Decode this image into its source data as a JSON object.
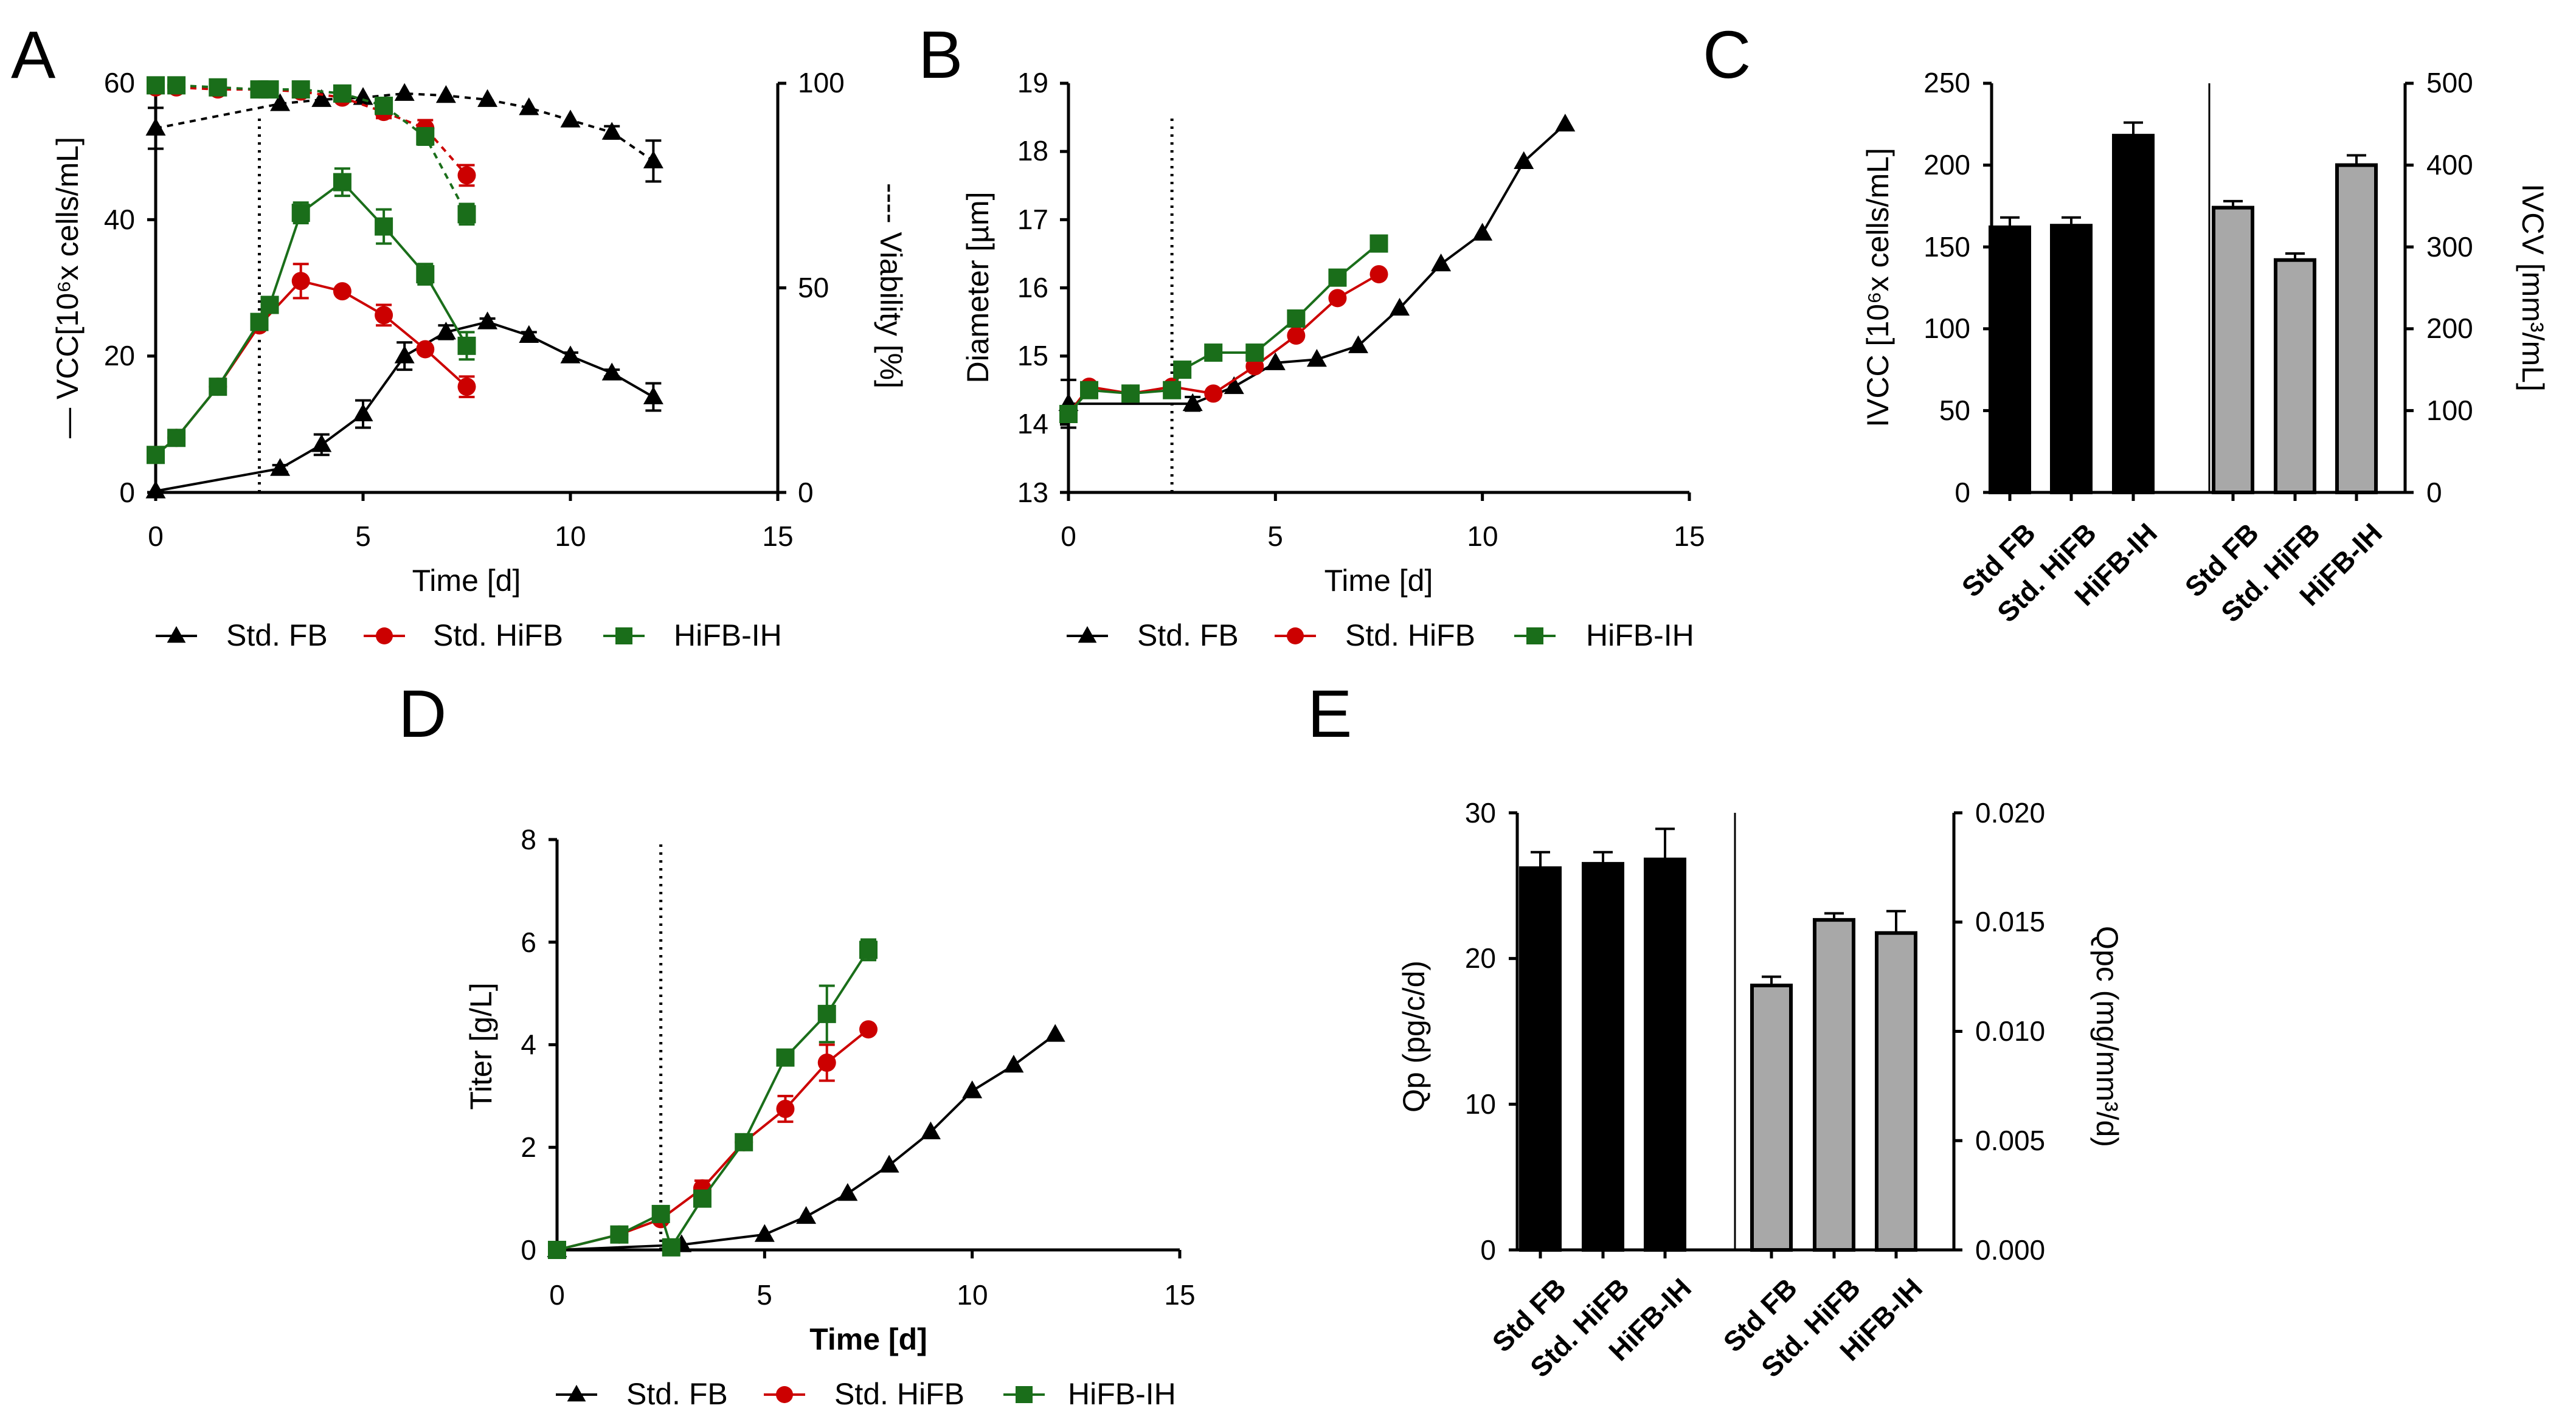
{
  "colors": {
    "std_fb": "#000000",
    "std_hifb": "#cc0000",
    "hifb_ih": "#1a6e1a",
    "bar_black": "#000000",
    "bar_gray": "#a8a8a8"
  },
  "legend": {
    "std_fb": "Std. FB",
    "std_hifb": "Std. HiFB",
    "hifb_ih": "HiFB-IH"
  },
  "chart_data": [
    {
      "panel": "A",
      "type": "line",
      "xlabel": "Time [d]",
      "ylabel": "VCC[10⁶x cells/mL]",
      "ylabel_prefix": "—",
      "y2label": "Viability [%]",
      "y2label_prefix": "----",
      "xlim": [
        0,
        15
      ],
      "ylim": [
        0,
        60
      ],
      "y2lim": [
        0,
        100
      ],
      "xticks": [
        "0",
        "5",
        "10",
        "15"
      ],
      "yticks": [
        "0",
        "20",
        "40",
        "60"
      ],
      "y2ticks": [
        "0",
        "50",
        "100"
      ],
      "vline_x": 2.5,
      "series": [
        {
          "name": "Std. FB",
          "metric": "VCC",
          "axis": "left",
          "dashed": false,
          "marker": "triangle",
          "color_key": "std_fb",
          "x": [
            0,
            3,
            4,
            5,
            6,
            7,
            8,
            9,
            10,
            11,
            12
          ],
          "y": [
            0.2,
            3.5,
            7,
            11.5,
            20,
            23.5,
            25,
            23,
            20,
            17.5,
            14
          ],
          "err": [
            0,
            0.5,
            1.5,
            2,
            2,
            1,
            0.5,
            0.5,
            0.5,
            0.5,
            2
          ]
        },
        {
          "name": "Std. HiFB",
          "metric": "VCC",
          "axis": "left",
          "dashed": false,
          "marker": "circle",
          "color_key": "std_hifb",
          "x": [
            0,
            0.5,
            1.5,
            2.5,
            3.5,
            4.5,
            5.5,
            6.5,
            7.5
          ],
          "y": [
            5.5,
            8,
            15.5,
            24.5,
            31,
            29.5,
            26,
            21,
            15.5
          ],
          "err": [
            0.5,
            0.5,
            0.5,
            0.5,
            2.5,
            0.5,
            1.5,
            0.5,
            1.5
          ]
        },
        {
          "name": "HiFB-IH",
          "metric": "VCC",
          "axis": "left",
          "dashed": false,
          "marker": "square",
          "color_key": "hifb_ih",
          "x": [
            0,
            0.5,
            1.5,
            2.5,
            2.75,
            3.5,
            4.5,
            5.5,
            6.5,
            7.5
          ],
          "y": [
            5.5,
            8,
            15.5,
            25,
            27.5,
            41,
            45.5,
            39,
            32,
            21.5
          ],
          "err": [
            0.5,
            0.5,
            0.5,
            0.5,
            0.5,
            1.5,
            2,
            2.5,
            1.5,
            2
          ]
        },
        {
          "name": "Std. FB",
          "metric": "Viability",
          "axis": "right",
          "dashed": true,
          "marker": "triangle",
          "color_key": "std_fb",
          "x": [
            0,
            3,
            4,
            5,
            6,
            7,
            8,
            9,
            10,
            11,
            12
          ],
          "y": [
            89,
            95,
            96,
            96.5,
            97.5,
            97,
            96,
            94,
            91,
            88,
            81
          ],
          "err": [
            5,
            0,
            0,
            0,
            0,
            0,
            0,
            0,
            0,
            1.5,
            5
          ]
        },
        {
          "name": "Std. HiFB",
          "metric": "Viability",
          "axis": "right",
          "dashed": true,
          "marker": "circle",
          "color_key": "std_hifb",
          "x": [
            0,
            0.5,
            1.5,
            2.5,
            3.5,
            4.5,
            5.5,
            6.5,
            7.5
          ],
          "y": [
            99,
            99,
            98.5,
            98.5,
            98,
            96.5,
            93,
            89,
            77.5
          ],
          "err": [
            0,
            0,
            0,
            0,
            0,
            0,
            1.5,
            2,
            2.5
          ]
        },
        {
          "name": "HiFB-IH",
          "metric": "Viability",
          "axis": "right",
          "dashed": true,
          "marker": "square",
          "color_key": "hifb_ih",
          "x": [
            0,
            0.5,
            1.5,
            2.5,
            2.75,
            3.5,
            4.5,
            5.5,
            6.5,
            7.5
          ],
          "y": [
            99.5,
            99.5,
            99,
            98.5,
            98.5,
            98.5,
            97.5,
            94.5,
            87,
            68
          ],
          "err": [
            0,
            0,
            0,
            0,
            0,
            0,
            0,
            1,
            2,
            2.5
          ]
        }
      ]
    },
    {
      "panel": "B",
      "type": "line",
      "xlabel": "Time [d]",
      "ylabel": "Diameter [µm]",
      "xlim": [
        0,
        15
      ],
      "ylim": [
        13,
        19
      ],
      "xticks": [
        "0",
        "5",
        "10",
        "15"
      ],
      "yticks": [
        "13",
        "14",
        "15",
        "16",
        "17",
        "18",
        "19"
      ],
      "vline_x": 2.5,
      "series": [
        {
          "name": "Std. FB",
          "marker": "triangle",
          "color_key": "std_fb",
          "x": [
            0,
            3,
            4,
            5,
            6,
            7,
            8,
            9,
            10,
            11,
            12
          ],
          "y": [
            14.3,
            14.3,
            14.55,
            14.9,
            14.95,
            15.15,
            15.7,
            16.35,
            16.8,
            17.85,
            18.4
          ],
          "err": [
            0.35,
            0.1,
            0,
            0,
            0,
            0,
            0,
            0,
            0,
            0,
            0
          ]
        },
        {
          "name": "Std. HiFB",
          "marker": "circle",
          "color_key": "std_hifb",
          "x": [
            0,
            0.5,
            1.5,
            2.5,
            3.5,
            4.5,
            5.5,
            6.5,
            7.5
          ],
          "y": [
            14.15,
            14.55,
            14.45,
            14.55,
            14.45,
            14.85,
            15.3,
            15.85,
            16.2
          ],
          "err": [
            0,
            0,
            0,
            0,
            0,
            0,
            0,
            0,
            0
          ]
        },
        {
          "name": "HiFB-IH",
          "marker": "square",
          "color_key": "hifb_ih",
          "x": [
            0,
            0.5,
            1.5,
            2.5,
            2.75,
            3.5,
            4.5,
            5.5,
            6.5,
            7.5
          ],
          "y": [
            14.15,
            14.5,
            14.45,
            14.5,
            14.8,
            15.05,
            15.05,
            15.55,
            16.15,
            16.65
          ],
          "err": [
            0,
            0,
            0,
            0,
            0,
            0,
            0,
            0,
            0,
            0
          ]
        }
      ]
    },
    {
      "panel": "C",
      "type": "bar",
      "ylabel": "IVCC [10⁶x cells/mL]",
      "y2label": "IVCV [mm³/mL]",
      "ylim": [
        0,
        250
      ],
      "y2lim": [
        0,
        500
      ],
      "yticks": [
        "0",
        "50",
        "100",
        "150",
        "200",
        "250"
      ],
      "y2ticks": [
        "0",
        "100",
        "200",
        "300",
        "400",
        "500"
      ],
      "groups": [
        {
          "metric": "IVCC",
          "axis": "left",
          "color_key": "bar_black",
          "categories": [
            "Std FB",
            "Std. HiFB",
            "HiFB-IH"
          ],
          "values": [
            162,
            163,
            218
          ],
          "err": [
            6,
            5,
            8
          ]
        },
        {
          "metric": "IVCV",
          "axis": "right",
          "color_key": "bar_gray",
          "categories": [
            "Std FB",
            "Std. HiFB",
            "HiFB-IH"
          ],
          "values": [
            348,
            284,
            400
          ],
          "err": [
            8,
            8,
            12
          ]
        }
      ]
    },
    {
      "panel": "D",
      "type": "line",
      "xlabel": "Time [d]",
      "ylabel": "Titer [g/L]",
      "xlim": [
        0,
        15
      ],
      "ylim": [
        0,
        8
      ],
      "xticks": [
        "0",
        "5",
        "10",
        "15"
      ],
      "yticks": [
        "0",
        "2",
        "4",
        "6",
        "8"
      ],
      "vline_x": 2.5,
      "series": [
        {
          "name": "Std. FB",
          "marker": "triangle",
          "color_key": "std_fb",
          "x": [
            0,
            3,
            5,
            6,
            7,
            8,
            9,
            10,
            11,
            12
          ],
          "y": [
            0,
            0.1,
            0.3,
            0.65,
            1.1,
            1.65,
            2.3,
            3.1,
            3.6,
            4.2
          ],
          "err": [
            0,
            0,
            0,
            0,
            0,
            0,
            0,
            0,
            0,
            0
          ]
        },
        {
          "name": "Std. HiFB",
          "marker": "circle",
          "color_key": "std_hifb",
          "x": [
            0,
            1.5,
            2.5,
            3.5,
            4.5,
            5.5,
            6.5,
            7.5
          ],
          "y": [
            0,
            0.3,
            0.6,
            1.2,
            2.1,
            2.75,
            3.65,
            4.3
          ],
          "err": [
            0,
            0.05,
            0.05,
            0.15,
            0.1,
            0.25,
            0.35,
            0.05
          ]
        },
        {
          "name": "HiFB-IH",
          "marker": "square",
          "color_key": "hifb_ih",
          "x": [
            0,
            1.5,
            2.5,
            2.75,
            3.5,
            4.5,
            5.5,
            6.5,
            7.5
          ],
          "y": [
            0,
            0.3,
            0.7,
            0.05,
            1.0,
            2.1,
            3.75,
            4.6,
            5.85
          ],
          "err": [
            0,
            0.05,
            0.05,
            0,
            0.1,
            0.1,
            0.05,
            0.55,
            0.2
          ]
        }
      ]
    },
    {
      "panel": "E",
      "type": "bar",
      "ylabel": "Qp (pg/c/d)",
      "y2label": "Qpc (mg/mm³/d)",
      "ylim": [
        0,
        30
      ],
      "y2lim": [
        0,
        0.02
      ],
      "yticks": [
        "0",
        "10",
        "20",
        "30"
      ],
      "y2ticks": [
        "0.000",
        "0.005",
        "0.010",
        "0.015",
        "0.020"
      ],
      "groups": [
        {
          "metric": "Qp",
          "axis": "left",
          "color_key": "bar_black",
          "categories": [
            "Std FB",
            "Std. HiFB",
            "HiFB-IH"
          ],
          "values": [
            26.2,
            26.5,
            26.8
          ],
          "err": [
            1.1,
            0.8,
            2.1
          ]
        },
        {
          "metric": "Qpc",
          "axis": "right",
          "color_key": "bar_gray",
          "categories": [
            "Std FB",
            "Std. HiFB",
            "HiFB-IH"
          ],
          "values": [
            0.0121,
            0.0151,
            0.0145
          ],
          "err": [
            0.0004,
            0.0003,
            0.001
          ]
        }
      ]
    }
  ]
}
